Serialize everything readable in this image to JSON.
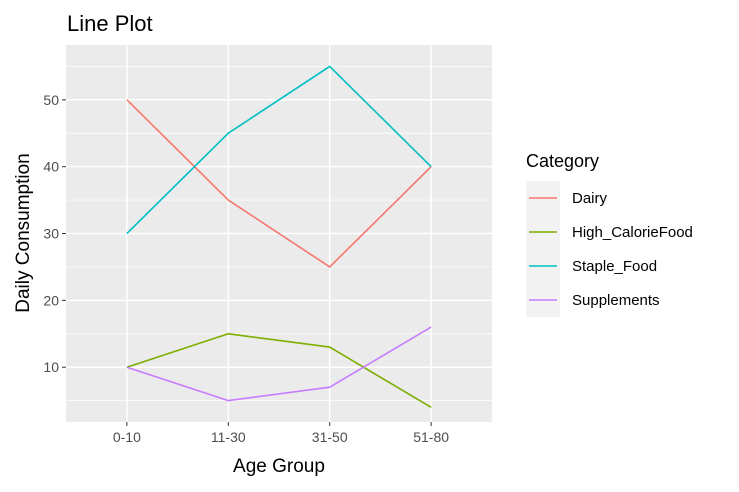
{
  "chart_data": {
    "type": "line",
    "title": "Line Plot",
    "xlabel": "Age Group",
    "ylabel": "Daily Consumption",
    "categories": [
      "0-10",
      "11-30",
      "31-50",
      "51-80"
    ],
    "ylim": [
      1.8,
      58.2
    ],
    "yticks": [
      10,
      20,
      30,
      40,
      50
    ],
    "grid": true,
    "legend": {
      "title": "Category",
      "position": "right"
    },
    "series": [
      {
        "name": "Dairy",
        "color": "#F8766D",
        "values": [
          50,
          35,
          25,
          40
        ]
      },
      {
        "name": "High_CalorieFood",
        "color": "#7CAE00",
        "values": [
          10,
          15,
          13,
          4
        ]
      },
      {
        "name": "Staple_Food",
        "color": "#00BFC4",
        "values": [
          30,
          45,
          55,
          40
        ]
      },
      {
        "name": "Supplements",
        "color": "#C77CFF",
        "values": [
          10,
          5,
          7,
          16
        ]
      }
    ]
  }
}
